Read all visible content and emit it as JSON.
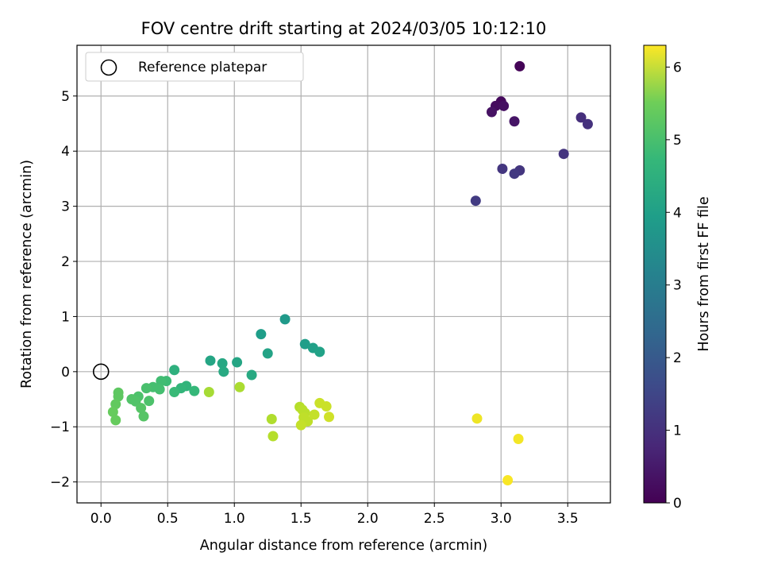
{
  "chart_data": {
    "type": "scatter",
    "title": "FOV centre drift starting at 2024/03/05 10:12:10",
    "xlabel": "Angular distance from reference (arcmin)",
    "ylabel": "Rotation from reference (arcmin)",
    "xlim": [
      -0.18,
      3.82
    ],
    "ylim": [
      -2.38,
      5.92
    ],
    "xticks": [
      0.0,
      0.5,
      1.0,
      1.5,
      2.0,
      2.5,
      3.0,
      3.5
    ],
    "xtick_labels": [
      "0.0",
      "0.5",
      "1.0",
      "1.5",
      "2.0",
      "2.5",
      "3.0",
      "3.5"
    ],
    "yticks": [
      -2,
      -1,
      0,
      1,
      2,
      3,
      4,
      5
    ],
    "ytick_labels": [
      "−2",
      "−1",
      "0",
      "1",
      "2",
      "3",
      "4",
      "5"
    ],
    "grid": true,
    "legend": {
      "location": "top-left",
      "entries": [
        {
          "label": "Reference platepar",
          "marker": "open-circle"
        }
      ]
    },
    "reference_point": {
      "x": 0.0,
      "y": 0.0
    },
    "colorbar": {
      "label": "Hours from first FF file",
      "range": [
        0,
        6.3
      ],
      "ticks": [
        0,
        1,
        2,
        3,
        4,
        5,
        6
      ],
      "tick_labels": [
        "0",
        "1",
        "2",
        "3",
        "4",
        "5",
        "6"
      ],
      "colormap": "viridis"
    },
    "points": [
      {
        "x": 3.14,
        "y": 5.54,
        "c": 0.05
      },
      {
        "x": 3.0,
        "y": 4.9,
        "c": 0.15
      },
      {
        "x": 2.96,
        "y": 4.82,
        "c": 0.2
      },
      {
        "x": 3.02,
        "y": 4.82,
        "c": 0.25
      },
      {
        "x": 2.93,
        "y": 4.71,
        "c": 0.3
      },
      {
        "x": 3.1,
        "y": 4.54,
        "c": 0.35
      },
      {
        "x": 3.6,
        "y": 4.61,
        "c": 0.85
      },
      {
        "x": 3.65,
        "y": 4.49,
        "c": 0.9
      },
      {
        "x": 3.47,
        "y": 3.95,
        "c": 0.95
      },
      {
        "x": 3.01,
        "y": 3.68,
        "c": 1.0
      },
      {
        "x": 3.14,
        "y": 3.65,
        "c": 1.0
      },
      {
        "x": 3.1,
        "y": 3.59,
        "c": 1.05
      },
      {
        "x": 2.81,
        "y": 3.1,
        "c": 1.1
      },
      {
        "x": 1.38,
        "y": 0.95,
        "c": 3.4
      },
      {
        "x": 1.2,
        "y": 0.68,
        "c": 3.5
      },
      {
        "x": 1.53,
        "y": 0.5,
        "c": 3.5
      },
      {
        "x": 1.59,
        "y": 0.43,
        "c": 3.55
      },
      {
        "x": 1.64,
        "y": 0.36,
        "c": 3.6
      },
      {
        "x": 1.25,
        "y": 0.33,
        "c": 3.65
      },
      {
        "x": 0.82,
        "y": 0.2,
        "c": 3.7
      },
      {
        "x": 1.02,
        "y": 0.17,
        "c": 3.7
      },
      {
        "x": 0.91,
        "y": 0.15,
        "c": 3.75
      },
      {
        "x": 0.92,
        "y": 0.0,
        "c": 3.8
      },
      {
        "x": 1.13,
        "y": -0.06,
        "c": 3.8
      },
      {
        "x": 0.55,
        "y": 0.03,
        "c": 4.0
      },
      {
        "x": 0.64,
        "y": -0.26,
        "c": 4.1
      },
      {
        "x": 0.6,
        "y": -0.3,
        "c": 4.15
      },
      {
        "x": 0.7,
        "y": -0.35,
        "c": 4.2
      },
      {
        "x": 0.55,
        "y": -0.37,
        "c": 4.25
      },
      {
        "x": 0.49,
        "y": -0.17,
        "c": 4.3
      },
      {
        "x": 0.45,
        "y": -0.17,
        "c": 4.35
      },
      {
        "x": 0.44,
        "y": -0.32,
        "c": 4.4
      },
      {
        "x": 0.39,
        "y": -0.28,
        "c": 4.4
      },
      {
        "x": 0.34,
        "y": -0.3,
        "c": 4.45
      },
      {
        "x": 0.28,
        "y": -0.45,
        "c": 4.5
      },
      {
        "x": 0.36,
        "y": -0.53,
        "c": 4.5
      },
      {
        "x": 0.23,
        "y": -0.5,
        "c": 4.55
      },
      {
        "x": 0.26,
        "y": -0.54,
        "c": 4.55
      },
      {
        "x": 0.3,
        "y": -0.66,
        "c": 4.6
      },
      {
        "x": 0.32,
        "y": -0.81,
        "c": 4.6
      },
      {
        "x": 0.13,
        "y": -0.38,
        "c": 4.7
      },
      {
        "x": 0.13,
        "y": -0.45,
        "c": 4.7
      },
      {
        "x": 0.11,
        "y": -0.59,
        "c": 4.75
      },
      {
        "x": 0.09,
        "y": -0.73,
        "c": 4.8
      },
      {
        "x": 0.11,
        "y": -0.88,
        "c": 4.8
      },
      {
        "x": 0.81,
        "y": -0.37,
        "c": 5.45
      },
      {
        "x": 1.04,
        "y": -0.28,
        "c": 5.5
      },
      {
        "x": 1.28,
        "y": -0.86,
        "c": 5.55
      },
      {
        "x": 1.29,
        "y": -1.17,
        "c": 5.6
      },
      {
        "x": 1.49,
        "y": -0.64,
        "c": 5.6
      },
      {
        "x": 1.51,
        "y": -0.69,
        "c": 5.65
      },
      {
        "x": 1.53,
        "y": -0.75,
        "c": 5.65
      },
      {
        "x": 1.52,
        "y": -0.83,
        "c": 5.7
      },
      {
        "x": 1.55,
        "y": -0.9,
        "c": 5.7
      },
      {
        "x": 1.5,
        "y": -0.97,
        "c": 5.75
      },
      {
        "x": 1.6,
        "y": -0.78,
        "c": 5.75
      },
      {
        "x": 1.64,
        "y": -0.57,
        "c": 5.8
      },
      {
        "x": 1.69,
        "y": -0.63,
        "c": 5.8
      },
      {
        "x": 1.71,
        "y": -0.82,
        "c": 5.85
      },
      {
        "x": 2.82,
        "y": -0.85,
        "c": 6.15
      },
      {
        "x": 3.13,
        "y": -1.22,
        "c": 6.2
      },
      {
        "x": 3.05,
        "y": -1.97,
        "c": 6.25
      }
    ]
  }
}
